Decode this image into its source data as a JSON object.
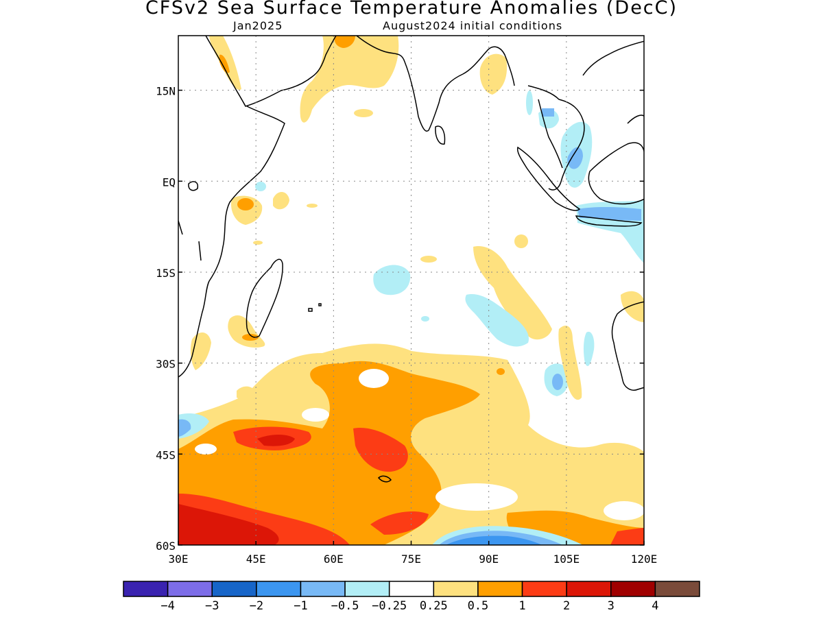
{
  "chart_data": {
    "type": "heatmap",
    "title": "CFSv2 Sea Surface Temperature Anomalies (DecC)",
    "subtitle_left": "Jan2025",
    "subtitle_right": "August2024 initial conditions",
    "x_ticks": [
      "30E",
      "45E",
      "60E",
      "75E",
      "90E",
      "105E",
      "120E"
    ],
    "y_ticks": [
      "15N",
      "EQ",
      "15S",
      "30S",
      "45S",
      "60S"
    ],
    "xlim": [
      30,
      120
    ],
    "ylim": [
      -60,
      24
    ],
    "grid": true,
    "colorbar": {
      "labels": [
        "-4",
        "-3",
        "-2",
        "-1",
        "-0.5",
        "-0.25",
        "0.25",
        "0.5",
        "1",
        "2",
        "3",
        "4"
      ],
      "colors": [
        "#3a23b0",
        "#7d6de8",
        "#1765c8",
        "#3c96f0",
        "#78b9f6",
        "#b2eef6",
        "#ffffff",
        "#fee17f",
        "#ff9f00",
        "#fc3c15",
        "#dc1607",
        "#a00000",
        "#7a4b3a"
      ]
    }
  }
}
